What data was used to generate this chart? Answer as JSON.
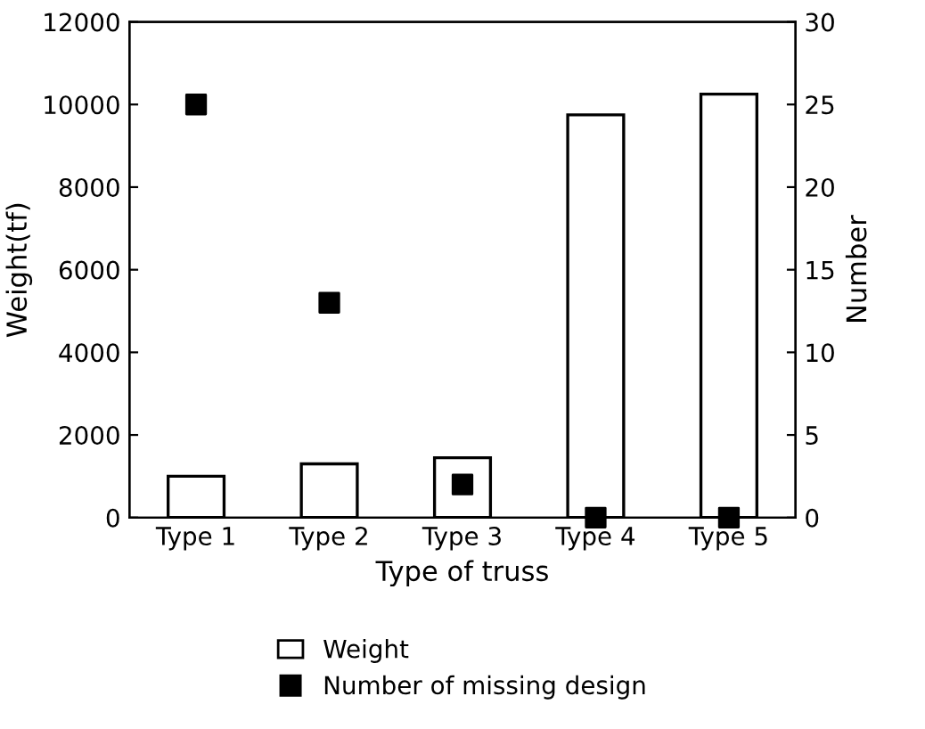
{
  "chart_data": {
    "type": "bar",
    "xlabel": "Type of truss",
    "ylabel": "Weight(tf)",
    "y2label": "Number",
    "categories": [
      "Type 1",
      "Type 2",
      "Type 3",
      "Type 4",
      "Type 5"
    ],
    "series": [
      {
        "name": "Weight",
        "color": "#ffffff",
        "values": [
          1000,
          1300,
          1450,
          9750,
          10250
        ]
      },
      {
        "name": "Number of missing design",
        "type": "scatter",
        "axis": "y2",
        "marker": "square",
        "color": "#000000",
        "values": [
          25,
          13,
          2,
          0,
          0
        ]
      }
    ],
    "ylim": [
      0,
      12000
    ],
    "yticks": [
      0,
      2000,
      4000,
      6000,
      8000,
      10000,
      12000
    ],
    "y2lim": [
      0,
      30
    ],
    "y2ticks": [
      0,
      5,
      10,
      15,
      20,
      25,
      30
    ],
    "legend": "bottom",
    "grid": false
  }
}
